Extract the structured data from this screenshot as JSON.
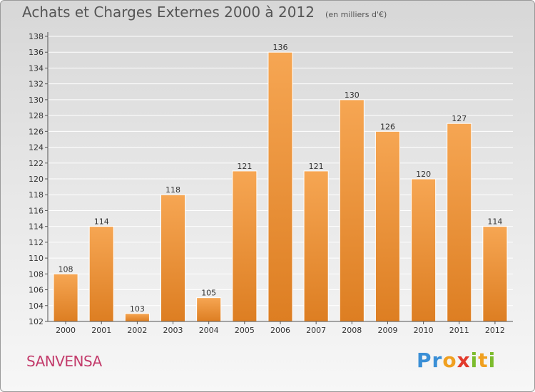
{
  "chart_title": "Achats et Charges Externes 2000 à 2012",
  "chart_unit": "(en milliers d'€)",
  "commune": "SANVENSA",
  "logo": {
    "letters": [
      "P",
      "r",
      "o",
      "x",
      "i",
      "t",
      "i"
    ],
    "colors": [
      "#3a8fd6",
      "#3a8fd6",
      "#f0a020",
      "#e23a2c",
      "#7cbc2e",
      "#f0a020",
      "#7cbc2e"
    ]
  },
  "colors": {
    "bar_top": "#f6a653",
    "bar_bottom": "#dd7e22",
    "grid": "#ffffff",
    "axis_text": "#333333"
  },
  "chart_data": {
    "type": "bar",
    "title": "Achats et Charges Externes 2000 à 2012",
    "xlabel": "",
    "ylabel": "",
    "categories": [
      "2000",
      "2001",
      "2002",
      "2003",
      "2004",
      "2005",
      "2006",
      "2007",
      "2008",
      "2009",
      "2010",
      "2011",
      "2012"
    ],
    "values": [
      108,
      114,
      103,
      118,
      105,
      121,
      136,
      121,
      130,
      126,
      120,
      127,
      114
    ],
    "ylim": [
      102,
      138
    ],
    "yticks": [
      102,
      104,
      106,
      108,
      110,
      112,
      114,
      116,
      118,
      120,
      122,
      124,
      126,
      128,
      130,
      132,
      134,
      136,
      138
    ],
    "grid": true
  }
}
